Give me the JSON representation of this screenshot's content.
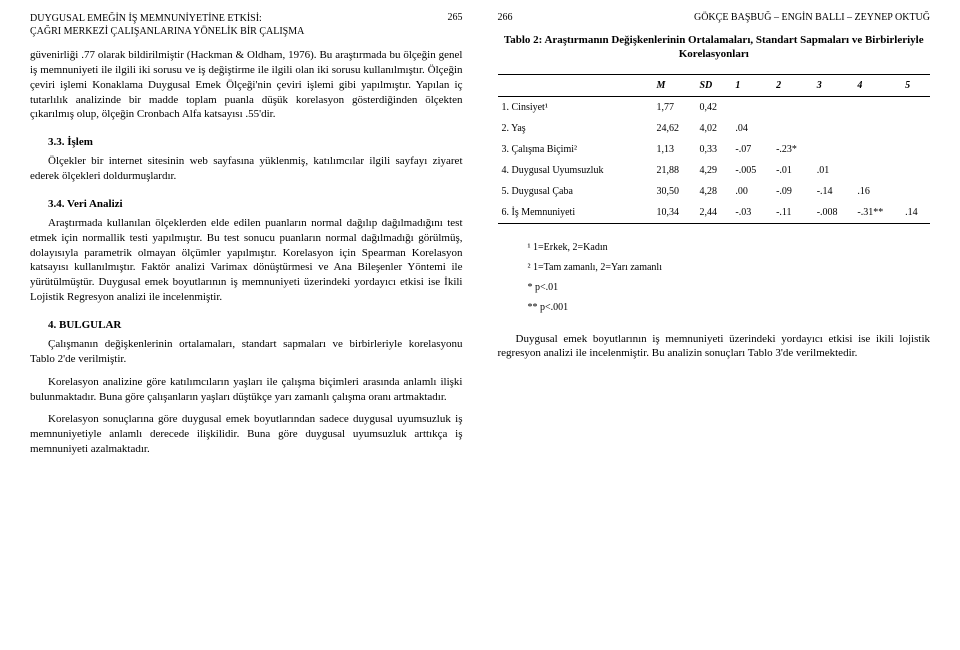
{
  "left": {
    "headerTitle": "DUYGUSAL EMEĞİN İŞ MEMNUNİYETİNE ETKİSİ:\nÇAĞRI MERKEZİ ÇALIŞANLARINA YÖNELİK BİR ÇALIŞMA",
    "pageNum": "265",
    "p1": "güvenirliği .77 olarak bildirilmiştir (Hackman & Oldham, 1976). Bu araştırmada bu ölçeğin genel iş memnuniyeti ile ilgili iki sorusu ve iş değiştirme ile ilgili olan iki sorusu kullanılmıştır. Ölçeğin çeviri işlemi Konaklama Duygusal Emek Ölçeği'nin çeviri işlemi gibi yapılmıştır. Yapılan iç tutarlılık analizinde bir madde toplam puanla düşük korelasyon gösterdiğinden ölçekten çıkarılmış olup, ölçeğin Cronbach Alfa katsayısı .55'dir.",
    "s33": "3.3. İşlem",
    "p2": "Ölçekler bir internet sitesinin web sayfasına yüklenmiş, katılımcılar ilgili sayfayı ziyaret ederek ölçekleri doldurmuşlardır.",
    "s34": "3.4. Veri Analizi",
    "p3": "Araştırmada kullanılan ölçeklerden elde edilen puanların normal dağılıp dağılmadığını test etmek için normallik testi yapılmıştır. Bu test sonucu puanların normal dağılmadığı görülmüş, dolayısıyla parametrik olmayan ölçümler yapılmıştır. Korelasyon için Spearman Korelasyon katsayısı kullanılmıştır. Faktör analizi Varimax dönüştürmesi ve Ana Bileşenler Yöntemi ile yürütülmüştür. Duygusal emek boyutlarının iş memnuniyeti üzerindeki yordayıcı etkisi ise İkili Lojistik Regresyon analizi ile incelenmiştir.",
    "s4": "4. BULGULAR",
    "p4": "Çalışmanın değişkenlerinin ortalamaları, standart sapmaları ve birbirleriyle korelasyonu Tablo 2'de verilmiştir.",
    "p5": "Korelasyon analizine göre katılımcıların yaşları ile çalışma biçimleri arasında anlamlı ilişki bulunmaktadır. Buna göre çalışanların yaşları düştükçe yarı zamanlı çalışma oranı artmaktadır.",
    "p6": "Korelasyon sonuçlarına göre duygusal emek boyutlarından sadece duygusal uyumsuzluk iş memnuniyetiyle anlamlı derecede ilişkilidir. Buna göre duygusal uyumsuzluk arttıkça iş memnuniyeti azalmaktadır."
  },
  "right": {
    "pageNum": "266",
    "authors": "GÖKÇE BAŞBUĞ – ENGİN BALLI – ZEYNEP OKTUĞ",
    "tableTitle": "Tablo 2: Araştırmanın Değişkenlerinin Ortalamaları, Standart Sapmaları ve Birbirleriyle Korelasyonları",
    "headers": [
      "",
      "M",
      "SD",
      "1",
      "2",
      "3",
      "4",
      "5"
    ],
    "rows": [
      [
        "1. Cinsiyet¹",
        "1,77",
        "0,42",
        "",
        "",
        "",
        "",
        ""
      ],
      [
        "2. Yaş",
        "24,62",
        "4,02",
        ".04",
        "",
        "",
        "",
        ""
      ],
      [
        "3. Çalışma Biçimi²",
        "1,13",
        "0,33",
        "-.07",
        "-.23*",
        "",
        "",
        ""
      ],
      [
        "4. Duygusal Uyumsuzluk",
        "21,88",
        "4,29",
        "-.005",
        "-.01",
        ".01",
        "",
        ""
      ],
      [
        "5. Duygusal Çaba",
        "30,50",
        "4,28",
        ".00",
        "-.09",
        "-.14",
        ".16",
        ""
      ],
      [
        "6. İş Memnuniyeti",
        "10,34",
        "2,44",
        "-.03",
        "-.11",
        "-.008",
        "-.31**",
        ".14"
      ]
    ],
    "note1": "¹ 1=Erkek, 2=Kadın",
    "note2": "² 1=Tam zamanlı, 2=Yarı zamanlı",
    "note3": "* p<.01",
    "note4": "** p<.001",
    "p1": "Duygusal emek boyutlarının iş memnuniyeti üzerindeki yordayıcı etkisi ise ikili lojistik regresyon analizi ile incelenmiştir. Bu analizin sonuçları Tablo 3'de verilmektedir."
  }
}
